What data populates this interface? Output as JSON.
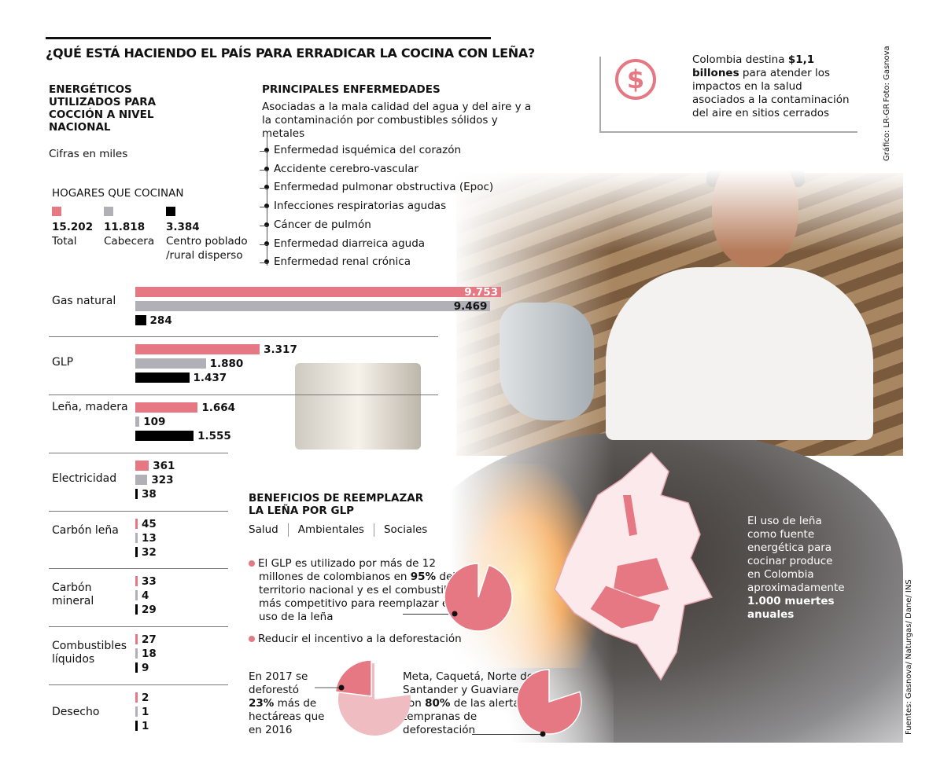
{
  "title": "¿QUÉ ESTÁ HACIENDO EL PAÍS PARA ERRADICAR LA COCINA CON LEÑA?",
  "left": {
    "heading": "ENERGÉTICOS UTILIZADOS PARA COCCIÓN A NIVEL NACIONAL",
    "units": "Cifras en miles",
    "legend_title": "HOGARES QUE COCINAN",
    "legend": [
      {
        "value": "15.202",
        "label": "Total",
        "color": "#e57882"
      },
      {
        "value": "11.818",
        "label": "Cabecera",
        "color": "#b1b0b6"
      },
      {
        "value": "3.384",
        "label": "Centro poblado /rural disperso",
        "color": "#000000"
      }
    ]
  },
  "diseases": {
    "heading": "PRINCIPALES ENFERMEDADES",
    "subtitle": "Asociadas a la mala calidad del agua y del aire y a la contaminación por combustibles sólidos y metales",
    "items": [
      "Enfermedad isquémica del corazón",
      "Accidente cerebro-vascular",
      "Enfermedad pulmonar obstructiva (Epoc)",
      "Infecciones respiratorias agudas",
      "Cáncer de pulmón",
      "Enfermedad diarreica aguda",
      "Enfermedad renal crónica"
    ]
  },
  "callout": {
    "icon": "dollar-circle-icon",
    "pre": "Colombia destina ",
    "bold": "$1,1 billones",
    "post": " para atender los impactos en la salud asociados a la contaminación del aire en sitios cerrados"
  },
  "credits": {
    "photo": "Foto: Gasnova",
    "graphic": "Gráfico: LR-GR",
    "sources": "Fuentes: Gasnova/ Naturgas/ Dane/ INS"
  },
  "chart_data": {
    "type": "bar",
    "orientation": "horizontal",
    "categories": [
      "Gas natural",
      "GLP",
      "Leña, madera",
      "Electricidad",
      "Carbón leña",
      "Carbón mineral",
      "Combustibles líquidos",
      "Desecho"
    ],
    "series": [
      {
        "name": "Total",
        "color": "#e57882",
        "values": [
          9753,
          3317,
          1664,
          361,
          45,
          33,
          27,
          2
        ],
        "labels": [
          "9.753",
          "3.317",
          "1.664",
          "361",
          "45",
          "33",
          "27",
          "2"
        ]
      },
      {
        "name": "Cabecera",
        "color": "#b1b0b6",
        "values": [
          9469,
          1880,
          109,
          323,
          13,
          4,
          18,
          1
        ],
        "labels": [
          "9.469",
          "1.880",
          "109",
          "323",
          "13",
          "4",
          "18",
          "1"
        ]
      },
      {
        "name": "Centro poblado /rural disperso",
        "color": "#000000",
        "values": [
          284,
          1437,
          1555,
          38,
          32,
          29,
          9,
          1
        ],
        "labels": [
          "284",
          "1.437",
          "1.555",
          "38",
          "32",
          "29",
          "9",
          "1"
        ]
      }
    ],
    "units": "miles"
  },
  "benefits": {
    "heading": "BENEFICIOS DE REEMPLAZAR LA LEÑA POR GLP",
    "tabs": [
      "Salud",
      "Ambientales",
      "Sociales"
    ],
    "b1_pre": "El GLP es utilizado por más de 12 millones de colombianos en ",
    "b1_bold": "95%",
    "b1_post": " del territorio nacional y es el combustible más competitivo para reemplazar el uso de la leña",
    "b2": "Reducir el incentivo a la deforestación",
    "pie_glp": {
      "value": 95,
      "color": "#e57882"
    },
    "defor_pre": "En 2017 se deforestó ",
    "defor_bold": "23%",
    "defor_post": " más de hectáreas que en 2016",
    "pie_defor": {
      "value": 23,
      "color": "#e57882",
      "rest_color": "#efbcc1"
    },
    "alert_pre": "Meta, Caquetá, Norte de Santander y Guaviare, son ",
    "alert_bold": "80%",
    "alert_post": " de las alertas tempranas de deforestación",
    "pie_alert": {
      "value": 80,
      "color": "#e57882",
      "rest_color": "#f3ccd0"
    }
  },
  "map_text": {
    "pre": "El uso de leña como fuente energética para cocinar produce en Colombia aproximadamente ",
    "bold": "1.000 muertes anuales"
  }
}
